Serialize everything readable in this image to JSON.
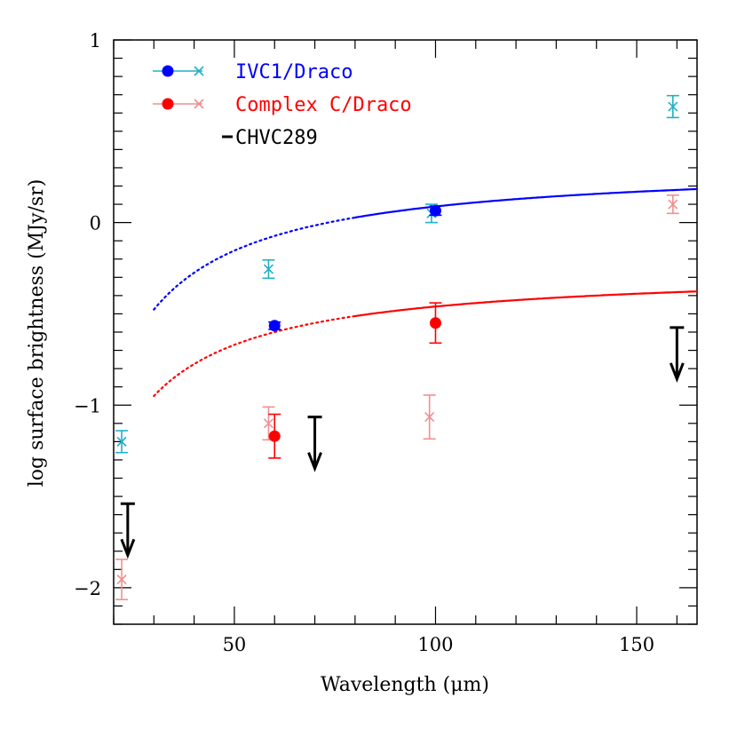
{
  "chart_data": {
    "type": "scatter",
    "xlabel": "Wavelength (μm)",
    "ylabel": "log surface brightness (MJy/sr)",
    "xlim": [
      20,
      165
    ],
    "ylim": [
      -2.2,
      1
    ],
    "x_ticks": [
      {
        "value": 50,
        "label": "50"
      },
      {
        "value": 100,
        "label": "100"
      },
      {
        "value": 150,
        "label": "150"
      }
    ],
    "y_ticks": [
      {
        "value": 1,
        "label": "1"
      },
      {
        "value": 0,
        "label": "0"
      },
      {
        "value": -1,
        "label": "−1"
      },
      {
        "value": -2,
        "label": "−2"
      }
    ],
    "series": [
      {
        "name": "IVC1/Draco",
        "color": "#0000ff",
        "cross_color": "#20b0c8",
        "fit_curve": {
          "A": 0.33,
          "T": 24.2,
          "dotted_until": 80
        },
        "measured": [
          {
            "x": 60,
            "y": -0.565,
            "err": 0.02
          },
          {
            "x": 100,
            "y": 0.065,
            "err": 0.025
          }
        ],
        "crosses": [
          {
            "x": 22,
            "y": -1.2,
            "err": 0.06
          },
          {
            "x": 58.5,
            "y": -0.255,
            "err": 0.05
          },
          {
            "x": 99,
            "y": 0.05,
            "err": 0.05
          },
          {
            "x": 159,
            "y": 0.635,
            "err": 0.06
          }
        ]
      },
      {
        "name": "Complex C/Draco",
        "color": "#ff0000",
        "cross_color": "#f09090",
        "fit_curve": {
          "A": -0.25,
          "T": 21.0,
          "dotted_until": 80
        },
        "measured": [
          {
            "x": 60,
            "y": -1.17,
            "err": 0.12
          },
          {
            "x": 100,
            "y": -0.55,
            "err": 0.11
          }
        ],
        "crosses": [
          {
            "x": 22,
            "y": -1.955,
            "err": 0.11
          },
          {
            "x": 58.5,
            "y": -1.1,
            "err": 0.09
          },
          {
            "x": 98.5,
            "y": -1.065,
            "err": 0.12
          },
          {
            "x": 159,
            "y": 0.1,
            "err": 0.05
          }
        ]
      },
      {
        "name": "CHVC289",
        "color": "#000000",
        "upper_limits": [
          {
            "x": 23.5,
            "y": -1.54
          },
          {
            "x": 70,
            "y": -1.065
          },
          {
            "x": 160,
            "y": -0.575
          }
        ]
      }
    ],
    "legend_position": "top-left",
    "grid": false
  }
}
